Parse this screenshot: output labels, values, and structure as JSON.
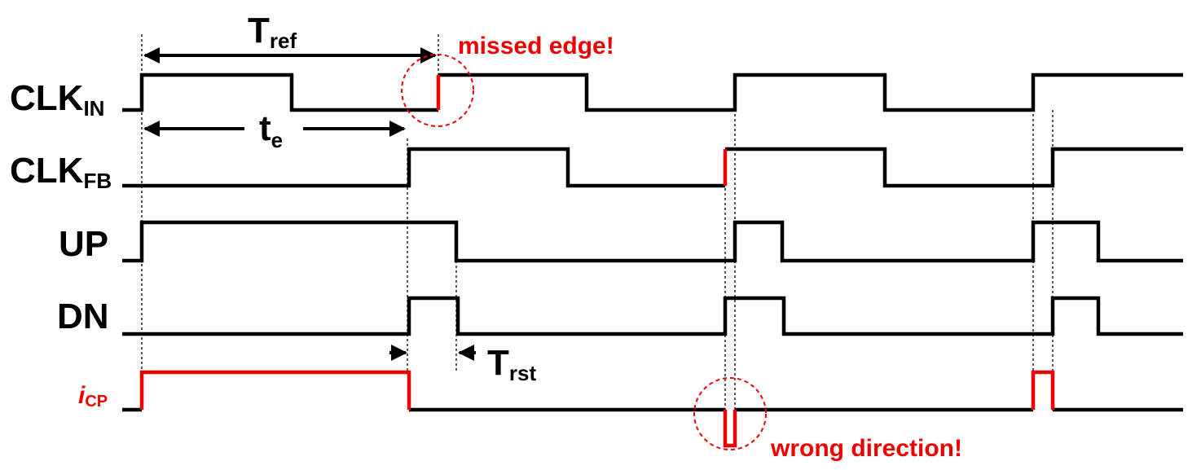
{
  "signals": {
    "clk_in": {
      "main": "CLK",
      "sub": "IN"
    },
    "clk_fb": {
      "main": "CLK",
      "sub": "FB"
    },
    "up": {
      "main": "UP"
    },
    "dn": {
      "main": "DN"
    },
    "icp": {
      "main": "i",
      "sub": "CP"
    }
  },
  "annotations": {
    "tref": {
      "main": "T",
      "sub": "ref"
    },
    "te": {
      "main": "t",
      "sub": "e"
    },
    "trst": {
      "main": "T",
      "sub": "rst"
    },
    "missed_edge": "missed edge!",
    "wrong_direction": "wrong direction!"
  },
  "colors": {
    "highlight": "#ee0000",
    "waveform": "#000000"
  }
}
